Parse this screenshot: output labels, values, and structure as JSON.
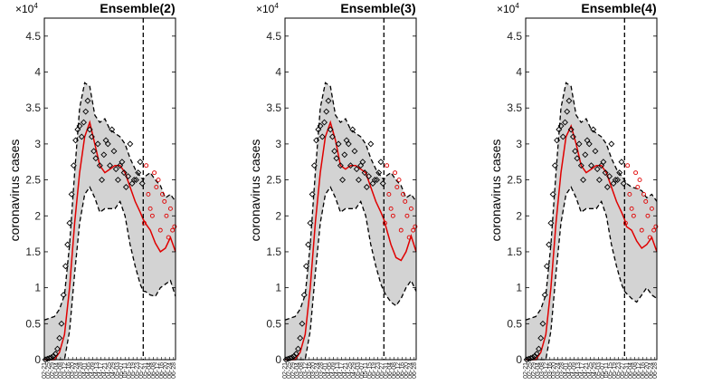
{
  "figure": {
    "y_axis_label": "coronavirus cases",
    "y_multiplier_base": "×10",
    "y_multiplier_exponent": "4"
  },
  "chart_data": [
    {
      "type": "line",
      "title": "Ensemble(2)",
      "ylabel": "coronavirus cases",
      "ylim": [
        0,
        4.75
      ],
      "yticks": [
        "0",
        "0.5",
        "1",
        "1.5",
        "2",
        "2.5",
        "3",
        "3.5",
        "4",
        "4.5"
      ],
      "y_scale_note": "×10^4",
      "x_range_days": [
        0,
        130
      ],
      "forecast_start_day": 98,
      "xtick_labels": [
        "02-21",
        "02-25",
        "02-29",
        "03-04",
        "03-08",
        "03-12",
        "03-16",
        "03-20",
        "03-24",
        "03-28",
        "04-01",
        "04-05",
        "04-09",
        "04-13",
        "04-17",
        "04-21",
        "04-25",
        "04-29",
        "05-03",
        "05-07",
        "05-11",
        "05-15",
        "05-19",
        "05-23",
        "05-27",
        "05-31",
        "06-04",
        "06-08",
        "06-12",
        "06-16",
        "06-20",
        "06-24",
        "06-28"
      ],
      "series": [
        {
          "name": "fitted mean",
          "x": [
            0,
            10,
            15,
            20,
            25,
            30,
            35,
            40,
            45,
            50,
            55,
            60,
            65,
            70,
            75,
            80,
            85,
            90,
            95,
            98,
            100,
            105,
            110,
            115,
            120,
            125,
            130
          ],
          "values": [
            0,
            0,
            0.1,
            0.35,
            1.0,
            1.9,
            2.6,
            3.1,
            3.3,
            3.0,
            2.7,
            2.6,
            2.65,
            2.7,
            2.7,
            2.6,
            2.4,
            2.2,
            2.05,
            1.95,
            1.9,
            1.8,
            1.62,
            1.5,
            1.55,
            1.7,
            1.5
          ]
        },
        {
          "name": "upper band",
          "x": [
            0,
            10,
            15,
            20,
            25,
            30,
            35,
            40,
            45,
            50,
            55,
            60,
            65,
            70,
            75,
            80,
            85,
            90,
            95,
            98,
            100,
            105,
            110,
            115,
            120,
            125,
            130
          ],
          "values": [
            0.55,
            0.6,
            0.7,
            0.9,
            1.6,
            2.6,
            3.5,
            3.85,
            3.8,
            3.4,
            3.3,
            3.35,
            3.2,
            3.15,
            3.1,
            3.0,
            2.8,
            2.65,
            2.55,
            2.5,
            2.55,
            2.6,
            2.5,
            2.42,
            2.25,
            2.3,
            2.2
          ]
        },
        {
          "name": "lower band",
          "x": [
            0,
            10,
            15,
            20,
            25,
            30,
            35,
            40,
            45,
            50,
            55,
            60,
            65,
            70,
            75,
            80,
            85,
            90,
            95,
            98,
            100,
            105,
            110,
            115,
            120,
            125,
            130
          ],
          "values": [
            0,
            0,
            0,
            0,
            0.4,
            1.2,
            1.9,
            2.3,
            2.4,
            2.25,
            2.05,
            2.1,
            2.1,
            2.1,
            2.2,
            2.0,
            1.6,
            1.3,
            1.05,
            0.95,
            0.95,
            0.9,
            0.88,
            1.0,
            1.05,
            1.1,
            0.88
          ]
        },
        {
          "name": "training data",
          "x": [
            1,
            3,
            5,
            7,
            9,
            11,
            13,
            15,
            17,
            19,
            21,
            23,
            25,
            27,
            29,
            31,
            33,
            35,
            37,
            39,
            41,
            43,
            45,
            47,
            49,
            51,
            53,
            55,
            57,
            59,
            61,
            63,
            65,
            67,
            69,
            71,
            73,
            75,
            77,
            79,
            81,
            83,
            85,
            87,
            89,
            91,
            93,
            95,
            97
          ],
          "values": [
            0,
            0.01,
            0.02,
            0.03,
            0.05,
            0.08,
            0.15,
            0.3,
            0.5,
            0.9,
            1.3,
            1.6,
            1.9,
            2.3,
            2.7,
            3.05,
            3.2,
            3.25,
            3.1,
            3.3,
            3.45,
            3.6,
            3.2,
            3.1,
            2.9,
            2.8,
            3.0,
            2.7,
            2.5,
            2.85,
            3.05,
            3.0,
            2.7,
            3.2,
            2.9,
            2.65,
            2.5,
            2.7,
            2.75,
            2.6,
            2.4,
            2.55,
            3.0,
            2.45,
            2.5,
            2.5,
            2.6,
            2.75,
            2.45
          ]
        },
        {
          "name": "test data",
          "x": [
            99,
            101,
            103,
            105,
            107,
            109,
            111,
            113,
            115,
            117,
            119,
            121,
            123,
            125,
            127,
            129
          ],
          "values": [
            1.9,
            2.7,
            2.3,
            2.1,
            2.0,
            2.6,
            2.4,
            2.5,
            1.8,
            2.3,
            2.2,
            2.0,
            1.7,
            2.1,
            1.8,
            1.85
          ]
        }
      ]
    },
    {
      "type": "line",
      "title": "Ensemble(3)",
      "ylabel": "coronavirus cases",
      "ylim": [
        0,
        4.75
      ],
      "yticks": [
        "0",
        "0.5",
        "1",
        "1.5",
        "2",
        "2.5",
        "3",
        "3.5",
        "4",
        "4.5"
      ],
      "y_scale_note": "×10^4",
      "x_range_days": [
        0,
        130
      ],
      "forecast_start_day": 98,
      "xtick_labels": [
        "02-21",
        "02-25",
        "02-29",
        "03-04",
        "03-08",
        "03-12",
        "03-16",
        "03-20",
        "03-24",
        "03-28",
        "04-01",
        "04-05",
        "04-09",
        "04-13",
        "04-17",
        "04-21",
        "04-25",
        "04-29",
        "05-03",
        "05-07",
        "05-11",
        "05-15",
        "05-19",
        "05-23",
        "05-27",
        "05-31",
        "06-04",
        "06-08",
        "06-12",
        "06-16",
        "06-20",
        "06-24",
        "06-28"
      ],
      "series": [
        {
          "name": "fitted mean",
          "x": [
            0,
            10,
            15,
            20,
            25,
            30,
            35,
            40,
            45,
            50,
            55,
            60,
            65,
            70,
            75,
            80,
            85,
            90,
            95,
            98,
            100,
            105,
            110,
            115,
            120,
            125,
            130
          ],
          "values": [
            0,
            0,
            0.1,
            0.35,
            1.0,
            1.9,
            2.6,
            3.1,
            3.3,
            3.05,
            2.7,
            2.65,
            2.7,
            2.7,
            2.65,
            2.6,
            2.4,
            2.2,
            2.05,
            1.95,
            1.85,
            1.6,
            1.42,
            1.38,
            1.5,
            1.72,
            1.5
          ]
        },
        {
          "name": "upper band",
          "x": [
            0,
            10,
            15,
            20,
            25,
            30,
            35,
            40,
            45,
            50,
            55,
            60,
            65,
            70,
            75,
            80,
            85,
            90,
            95,
            98,
            100,
            105,
            110,
            115,
            120,
            125,
            130
          ],
          "values": [
            0.55,
            0.6,
            0.7,
            0.9,
            1.6,
            2.6,
            3.5,
            3.85,
            3.8,
            3.4,
            3.3,
            3.35,
            3.2,
            3.15,
            3.1,
            3.0,
            2.8,
            2.65,
            2.55,
            2.5,
            2.55,
            2.6,
            2.5,
            2.42,
            2.25,
            2.3,
            2.2
          ]
        },
        {
          "name": "lower band",
          "x": [
            0,
            10,
            15,
            20,
            25,
            30,
            35,
            40,
            45,
            50,
            55,
            60,
            65,
            70,
            75,
            80,
            85,
            90,
            95,
            98,
            100,
            105,
            110,
            115,
            120,
            125,
            130
          ],
          "values": [
            0,
            0,
            0,
            0,
            0.4,
            1.2,
            1.9,
            2.3,
            2.4,
            2.25,
            2.05,
            2.1,
            2.1,
            2.1,
            2.2,
            2.0,
            1.6,
            1.3,
            1.05,
            0.95,
            0.9,
            0.8,
            0.75,
            0.85,
            1.0,
            1.1,
            0.95
          ]
        },
        {
          "name": "training data",
          "x": [
            1,
            3,
            5,
            7,
            9,
            11,
            13,
            15,
            17,
            19,
            21,
            23,
            25,
            27,
            29,
            31,
            33,
            35,
            37,
            39,
            41,
            43,
            45,
            47,
            49,
            51,
            53,
            55,
            57,
            59,
            61,
            63,
            65,
            67,
            69,
            71,
            73,
            75,
            77,
            79,
            81,
            83,
            85,
            87,
            89,
            91,
            93,
            95,
            97
          ],
          "values": [
            0,
            0.01,
            0.02,
            0.03,
            0.05,
            0.08,
            0.15,
            0.3,
            0.5,
            0.9,
            1.3,
            1.6,
            1.9,
            2.3,
            2.7,
            3.05,
            3.2,
            3.25,
            3.1,
            3.3,
            3.45,
            3.6,
            3.2,
            3.1,
            2.9,
            2.8,
            3.0,
            2.7,
            2.5,
            2.85,
            3.05,
            3.0,
            2.7,
            3.2,
            2.9,
            2.65,
            2.5,
            2.7,
            2.75,
            2.6,
            2.4,
            2.55,
            3.0,
            2.45,
            2.5,
            2.5,
            2.6,
            2.75,
            2.45
          ]
        },
        {
          "name": "test data",
          "x": [
            99,
            101,
            103,
            105,
            107,
            109,
            111,
            113,
            115,
            117,
            119,
            121,
            123,
            125,
            127,
            129
          ],
          "values": [
            1.9,
            2.7,
            2.3,
            2.1,
            2.0,
            2.6,
            2.4,
            2.5,
            1.8,
            2.3,
            2.2,
            2.0,
            1.7,
            2.1,
            1.8,
            1.85
          ]
        }
      ]
    },
    {
      "type": "line",
      "title": "Ensemble(4)",
      "ylabel": "coronavirus cases",
      "ylim": [
        0,
        4.75
      ],
      "yticks": [
        "0",
        "0.5",
        "1",
        "1.5",
        "2",
        "2.5",
        "3",
        "3.5",
        "4",
        "4.5"
      ],
      "y_scale_note": "×10^4",
      "x_range_days": [
        0,
        130
      ],
      "forecast_start_day": 98,
      "xtick_labels": [
        "02-21",
        "02-25",
        "02-29",
        "03-04",
        "03-08",
        "03-12",
        "03-16",
        "03-20",
        "03-24",
        "03-28",
        "04-01",
        "04-05",
        "04-09",
        "04-13",
        "04-17",
        "04-21",
        "04-25",
        "04-29",
        "05-03",
        "05-07",
        "05-11",
        "05-15",
        "05-19",
        "05-23",
        "05-27",
        "05-31",
        "06-04",
        "06-08",
        "06-12",
        "06-16",
        "06-20",
        "06-24",
        "06-28"
      ],
      "series": [
        {
          "name": "fitted mean",
          "x": [
            0,
            10,
            15,
            20,
            25,
            30,
            35,
            40,
            45,
            50,
            55,
            60,
            65,
            70,
            75,
            80,
            85,
            90,
            95,
            98,
            100,
            105,
            110,
            115,
            120,
            125,
            130
          ],
          "values": [
            0,
            0,
            0.1,
            0.35,
            1.0,
            1.9,
            2.6,
            3.1,
            3.25,
            3.0,
            2.7,
            2.6,
            2.65,
            2.7,
            2.7,
            2.6,
            2.4,
            2.2,
            2.05,
            1.95,
            1.85,
            1.8,
            1.65,
            1.55,
            1.6,
            1.7,
            1.5
          ]
        },
        {
          "name": "upper band",
          "x": [
            0,
            10,
            15,
            20,
            25,
            30,
            35,
            40,
            45,
            50,
            55,
            60,
            65,
            70,
            75,
            80,
            85,
            90,
            95,
            98,
            100,
            105,
            110,
            115,
            120,
            125,
            130
          ],
          "values": [
            0.55,
            0.6,
            0.7,
            0.9,
            1.6,
            2.6,
            3.5,
            3.85,
            3.8,
            3.4,
            3.3,
            3.35,
            3.2,
            3.15,
            3.1,
            3.0,
            2.8,
            2.65,
            2.55,
            2.5,
            2.45,
            2.4,
            2.38,
            2.35,
            2.25,
            2.3,
            2.2
          ]
        },
        {
          "name": "lower band",
          "x": [
            0,
            10,
            15,
            20,
            25,
            30,
            35,
            40,
            45,
            50,
            55,
            60,
            65,
            70,
            75,
            80,
            85,
            90,
            95,
            98,
            100,
            105,
            110,
            115,
            120,
            125,
            130
          ],
          "values": [
            0,
            0,
            0,
            0,
            0.4,
            1.2,
            1.9,
            2.3,
            2.4,
            2.25,
            2.05,
            2.1,
            2.1,
            2.1,
            2.2,
            2.0,
            1.6,
            1.3,
            1.05,
            0.95,
            0.92,
            0.85,
            0.8,
            0.9,
            1.0,
            0.9,
            0.85
          ]
        },
        {
          "name": "training data",
          "x": [
            1,
            3,
            5,
            7,
            9,
            11,
            13,
            15,
            17,
            19,
            21,
            23,
            25,
            27,
            29,
            31,
            33,
            35,
            37,
            39,
            41,
            43,
            45,
            47,
            49,
            51,
            53,
            55,
            57,
            59,
            61,
            63,
            65,
            67,
            69,
            71,
            73,
            75,
            77,
            79,
            81,
            83,
            85,
            87,
            89,
            91,
            93,
            95,
            97
          ],
          "values": [
            0,
            0.01,
            0.02,
            0.03,
            0.05,
            0.08,
            0.15,
            0.3,
            0.5,
            0.9,
            1.3,
            1.6,
            1.9,
            2.3,
            2.7,
            3.05,
            3.2,
            3.25,
            3.1,
            3.3,
            3.45,
            3.6,
            3.2,
            3.1,
            2.9,
            2.8,
            3.0,
            2.7,
            2.5,
            2.85,
            3.05,
            3.0,
            2.7,
            3.2,
            2.9,
            2.65,
            2.5,
            2.7,
            2.75,
            2.6,
            2.4,
            2.55,
            3.0,
            2.45,
            2.5,
            2.5,
            2.6,
            2.75,
            2.45
          ]
        },
        {
          "name": "test data",
          "x": [
            99,
            101,
            103,
            105,
            107,
            109,
            111,
            113,
            115,
            117,
            119,
            121,
            123,
            125,
            127,
            129
          ],
          "values": [
            1.9,
            2.7,
            2.3,
            2.1,
            2.0,
            2.6,
            2.4,
            2.5,
            1.8,
            2.3,
            2.2,
            2.0,
            1.7,
            2.1,
            1.8,
            1.85
          ]
        }
      ]
    }
  ],
  "colors": {
    "band_fill": "#d3d3d3",
    "mean_line": "#e00000",
    "train_points": "#000000",
    "test_points": "#e00000",
    "forecast_divider": "#000000"
  }
}
